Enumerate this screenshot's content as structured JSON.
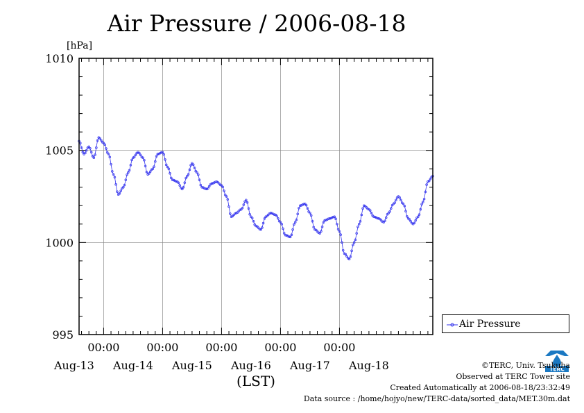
{
  "chart_data": {
    "type": "line",
    "title": "Air Pressure / 2006-08-18",
    "unit_label": "[hPa]",
    "xlabel": "(LST)",
    "x_ticks": [
      "00:00",
      "00:00",
      "00:00",
      "00:00",
      "00:00"
    ],
    "x_dates": [
      "Aug-13",
      "Aug-14",
      "Aug-15",
      "Aug-16",
      "Aug-17",
      "Aug-18"
    ],
    "ylim": [
      995,
      1010
    ],
    "y_ticks": [
      "995",
      "1000",
      "1005",
      "1010"
    ],
    "grid": true,
    "legend_position": "right",
    "x_unit": "hours since 2006-08-12 14:00 LST",
    "x_range": [
      0,
      144
    ],
    "series": [
      {
        "name": "Air Pressure",
        "color": "#3333ee",
        "x": [
          0,
          2,
          4,
          6,
          8,
          10,
          12,
          14,
          16,
          18,
          20,
          22,
          24,
          26,
          28,
          30,
          32,
          34,
          36,
          38,
          40,
          42,
          44,
          46,
          48,
          50,
          52,
          54,
          56,
          58,
          60,
          62,
          64,
          66,
          68,
          70,
          72,
          74,
          76,
          78,
          80,
          82,
          84,
          86,
          88,
          90,
          92,
          94,
          96,
          98,
          100,
          102,
          104,
          106,
          108,
          110,
          112,
          114,
          116,
          118,
          120,
          122,
          124,
          126,
          128,
          130,
          132,
          134,
          136,
          138,
          140,
          142,
          144
        ],
        "values": [
          1005.5,
          1004.8,
          1005.2,
          1004.6,
          1005.7,
          1005.4,
          1004.8,
          1003.7,
          1002.6,
          1003.0,
          1003.8,
          1004.6,
          1004.9,
          1004.6,
          1003.7,
          1004.0,
          1004.8,
          1004.9,
          1004.1,
          1003.4,
          1003.3,
          1002.9,
          1003.6,
          1004.3,
          1003.8,
          1003.0,
          1002.9,
          1003.2,
          1003.3,
          1003.1,
          1002.5,
          1001.4,
          1001.6,
          1001.8,
          1002.3,
          1001.4,
          1000.9,
          1000.7,
          1001.4,
          1001.6,
          1001.5,
          1001.1,
          1000.4,
          1000.3,
          1001.1,
          1002.0,
          1002.1,
          1001.6,
          1000.7,
          1000.5,
          1001.2,
          1001.3,
          1001.4,
          1000.6,
          999.4,
          999.1,
          1000.0,
          1001.0,
          1002.0,
          1001.8,
          1001.4,
          1001.3,
          1001.1,
          1001.6,
          1002.1,
          1002.5,
          1002.1,
          1001.3,
          1001.0,
          1001.4,
          1002.2,
          1003.3,
          1003.6
        ]
      }
    ]
  },
  "legend": {
    "label": "Air Pressure"
  },
  "credits": [
    "©TERC, Univ. Tsukuba",
    "Observed at TERC Tower site",
    "Created Automatically at 2006-08-18/23:32:49",
    "Data source : /home/hojyo/new/TERC-data/sorted_data/MET.30m.dat"
  ],
  "logo": {
    "text": "TERC"
  }
}
